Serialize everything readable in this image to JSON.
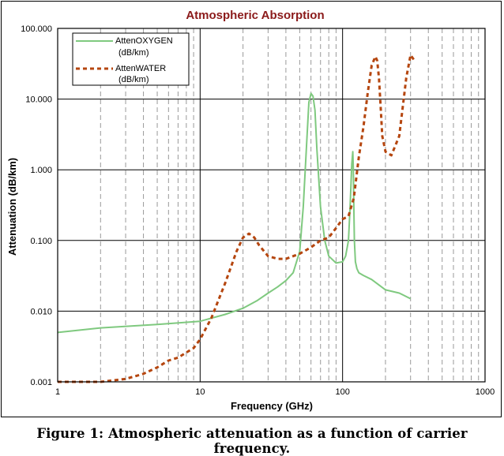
{
  "caption": "Figure 1: Atmospheric attenuation as a function of carrier frequency.",
  "chart_data": {
    "type": "line",
    "title": "Atmospheric Absorption",
    "xlabel": "Frequency (GHz)",
    "ylabel": "Attenuation (dB/km)",
    "xscale": "log",
    "yscale": "log",
    "xlim": [
      1,
      1000
    ],
    "ylim": [
      0.001,
      100
    ],
    "x_ticks": [
      1,
      10,
      100,
      1000
    ],
    "x_tick_labels": [
      "1",
      "10",
      "100",
      "1000"
    ],
    "y_ticks": [
      0.001,
      0.01,
      0.1,
      1,
      10,
      100
    ],
    "y_tick_labels": [
      "0.001",
      "0.010",
      "0.100",
      "1.000",
      "10.000",
      "100.000"
    ],
    "grid": "major solid, minor dashed vertical",
    "legend_position": "top-left",
    "colors": {
      "title": "#8b1a1a",
      "oxygen": "#7fc97f",
      "water": "#b5460f",
      "major_grid": "#000000",
      "minor_grid": "#999999"
    },
    "series": [
      {
        "name": "AttenOXYGEN (dB/km)",
        "legend_line1": "AttenOXYGEN",
        "legend_line2": "(dB/km)",
        "style": "solid",
        "x": [
          1,
          2,
          5,
          10,
          15,
          20,
          25,
          30,
          35,
          40,
          45,
          50,
          53,
          56,
          58,
          60,
          62,
          64,
          66,
          70,
          75,
          80,
          90,
          100,
          105,
          110,
          113,
          116,
          118,
          119,
          120,
          121,
          123,
          126,
          130,
          140,
          160,
          200,
          250,
          300
        ],
        "values": [
          0.005,
          0.0058,
          0.0065,
          0.0072,
          0.009,
          0.011,
          0.014,
          0.018,
          0.022,
          0.027,
          0.035,
          0.07,
          0.3,
          2.5,
          9,
          12,
          11,
          7,
          2,
          0.3,
          0.1,
          0.06,
          0.048,
          0.05,
          0.06,
          0.1,
          0.3,
          1.2,
          1.8,
          1.0,
          0.3,
          0.1,
          0.05,
          0.04,
          0.035,
          0.032,
          0.028,
          0.02,
          0.018,
          0.015
        ]
      },
      {
        "name": "AttenWATER (dB/km)",
        "legend_line1": "AttenWATER",
        "legend_line2": "(dB/km)",
        "style": "dashed",
        "x": [
          1,
          2,
          3,
          4,
          5,
          6,
          7,
          8,
          9,
          10,
          12,
          15,
          18,
          20,
          22,
          24,
          26,
          30,
          35,
          40,
          50,
          60,
          70,
          80,
          90,
          100,
          110,
          120,
          130,
          140,
          150,
          160,
          170,
          175,
          180,
          185,
          190,
          200,
          220,
          250,
          280,
          300,
          320
        ],
        "values": [
          0.001,
          0.001,
          0.0011,
          0.0013,
          0.0016,
          0.002,
          0.0022,
          0.0026,
          0.003,
          0.004,
          0.008,
          0.025,
          0.07,
          0.11,
          0.125,
          0.11,
          0.085,
          0.06,
          0.055,
          0.055,
          0.065,
          0.08,
          0.1,
          0.11,
          0.15,
          0.2,
          0.22,
          0.4,
          1.5,
          4,
          12,
          30,
          40,
          35,
          20,
          8,
          3,
          1.8,
          1.6,
          3,
          20,
          42,
          35
        ]
      }
    ]
  }
}
